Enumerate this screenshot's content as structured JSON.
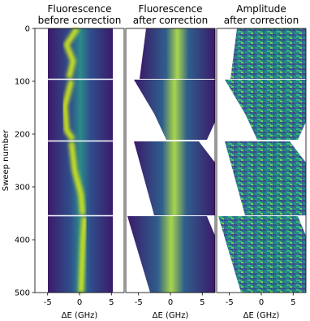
{
  "chart_data": [
    {
      "type": "heatmap",
      "title": "Fluorescence\nbefore correction",
      "xlabel": "ΔE (GHz)",
      "ylabel": "Sweep number",
      "colormap": "viridis",
      "xlim": [
        -7,
        7
      ],
      "xticks": [
        -5,
        0,
        5
      ],
      "ylim": [
        500,
        0
      ],
      "yticks": [
        0,
        100,
        200,
        300,
        400,
        500
      ]
    },
    {
      "type": "heatmap",
      "title": "Fluorescence\nafter correction",
      "xlabel": "ΔE (GHz)",
      "colormap": "viridis",
      "xlim": [
        -7,
        7
      ],
      "xticks": [
        -5,
        0,
        5
      ],
      "ylim": [
        500,
        0
      ]
    },
    {
      "type": "heatmap",
      "title": "Amplitude\nafter correction",
      "xlabel": "ΔE (GHz)",
      "colormap": "viridis",
      "xlim": [
        -7,
        7
      ],
      "xticks": [
        -5,
        0,
        5
      ],
      "ylim": [
        500,
        0
      ]
    }
  ]
}
